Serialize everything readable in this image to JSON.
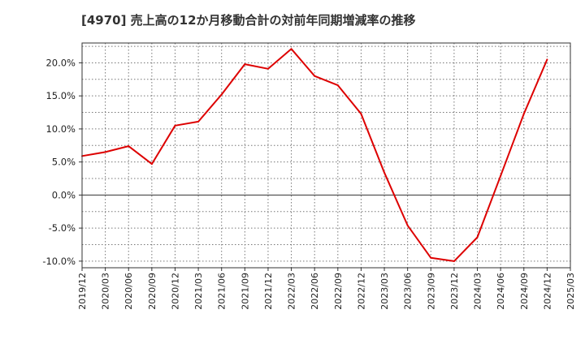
{
  "chart_data": {
    "type": "line",
    "title": "[4970]  売上高の12か月移動合計の対前年同期増減率の推移",
    "xlabel": "",
    "ylabel": "",
    "ylim": [
      -11.0,
      23.0
    ],
    "yticks": [
      20.0,
      15.0,
      10.0,
      5.0,
      0.0,
      -5.0,
      -10.0
    ],
    "ytick_labels": [
      "20.0%",
      "15.0%",
      "10.0%",
      "5.0%",
      "0.0%",
      "-5.0%",
      "-10.0%"
    ],
    "categories": [
      "2019/12",
      "2020/03",
      "2020/06",
      "2020/09",
      "2020/12",
      "2021/03",
      "2021/06",
      "2021/09",
      "2021/12",
      "2022/03",
      "2022/06",
      "2022/09",
      "2022/12",
      "2023/03",
      "2023/06",
      "2023/09",
      "2023/12",
      "2024/03",
      "2024/06",
      "2024/09",
      "2024/12",
      "2025/03"
    ],
    "grid": true,
    "series": [
      {
        "name": "対前年同期増減率",
        "color": "#dd0000",
        "values": [
          5.9,
          6.5,
          7.4,
          4.7,
          10.5,
          11.1,
          15.2,
          19.8,
          19.1,
          22.1,
          18.0,
          16.6,
          12.3,
          3.4,
          -4.6,
          -9.5,
          -10.0,
          -6.4,
          2.9,
          12.3,
          20.5,
          null
        ]
      }
    ]
  }
}
